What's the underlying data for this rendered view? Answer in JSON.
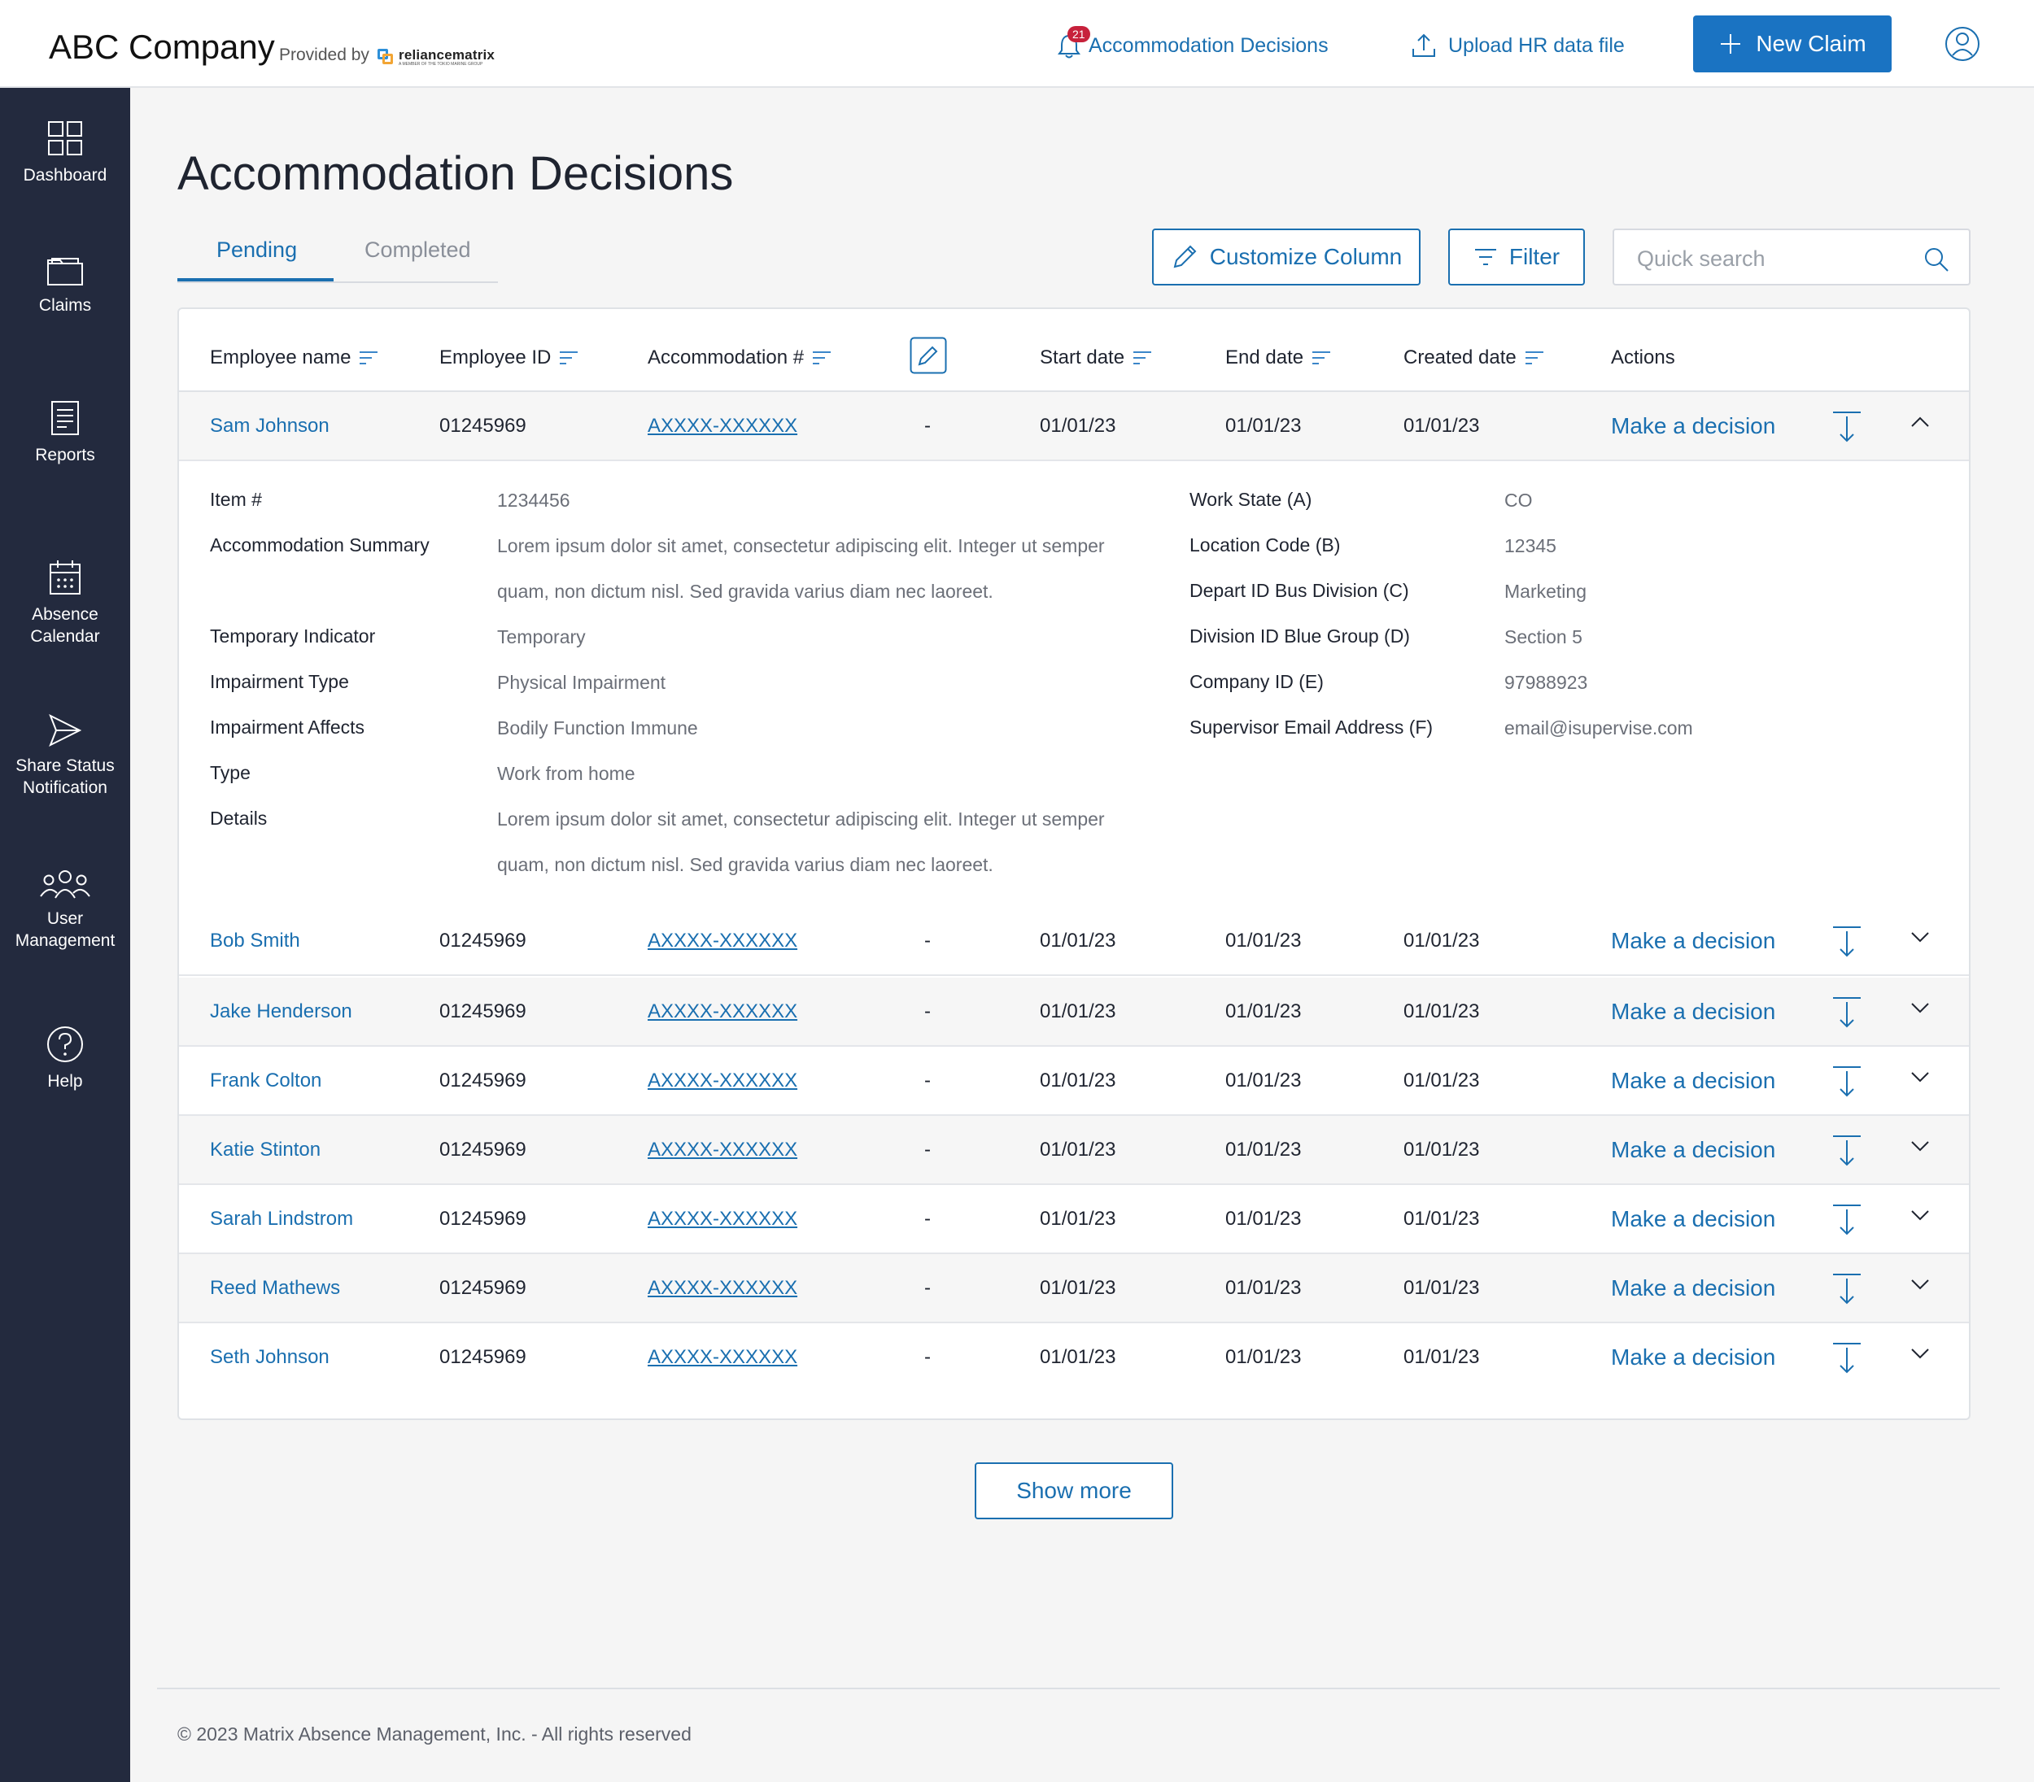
{
  "header": {
    "company": "ABC Company",
    "provided_by": "Provided by",
    "logo_text": "reliancematrix",
    "logo_subtext": "A MEMBER OF THE TOKIO MARINE GROUP",
    "notifications_label": "Accommodation Decisions",
    "notifications_count": "21",
    "upload_label": "Upload HR data file",
    "new_claim_label": "New Claim"
  },
  "sidebar": {
    "items": [
      {
        "label": "Dashboard",
        "icon": "dashboard-icon"
      },
      {
        "label": "Claims",
        "icon": "folder-icon"
      },
      {
        "label": "Reports",
        "icon": "document-icon"
      },
      {
        "label": "Absence Calendar",
        "icon": "calendar-icon"
      },
      {
        "label": "Share Status Notification",
        "icon": "send-icon"
      },
      {
        "label": "User Management",
        "icon": "users-icon"
      },
      {
        "label": "Help",
        "icon": "help-icon"
      }
    ]
  },
  "page": {
    "title": "Accommodation Decisions",
    "tabs": [
      "Pending",
      "Completed"
    ],
    "customize_label": "Customize Column",
    "filter_label": "Filter",
    "search_placeholder": "Quick search"
  },
  "table": {
    "columns": [
      "Employee name",
      "Employee ID",
      "Accommodation #",
      "Start date",
      "End date",
      "Created date",
      "Actions"
    ],
    "action_label": "Make a decision",
    "rows": [
      {
        "name": "Sam Johnson",
        "id": "01245969",
        "acc": "AXXXX-XXXXXX",
        "dash": "-",
        "start": "01/01/23",
        "end": "01/01/23",
        "created": "01/01/23"
      },
      {
        "name": "Bob Smith",
        "id": "01245969",
        "acc": "AXXXX-XXXXXX",
        "dash": "-",
        "start": "01/01/23",
        "end": "01/01/23",
        "created": "01/01/23"
      },
      {
        "name": "Jake Henderson",
        "id": "01245969",
        "acc": "AXXXX-XXXXXX",
        "dash": "-",
        "start": "01/01/23",
        "end": "01/01/23",
        "created": "01/01/23"
      },
      {
        "name": "Frank Colton",
        "id": "01245969",
        "acc": "AXXXX-XXXXXX",
        "dash": "-",
        "start": "01/01/23",
        "end": "01/01/23",
        "created": "01/01/23"
      },
      {
        "name": "Katie Stinton",
        "id": "01245969",
        "acc": "AXXXX-XXXXXX",
        "dash": "-",
        "start": "01/01/23",
        "end": "01/01/23",
        "created": "01/01/23"
      },
      {
        "name": "Sarah Lindstrom",
        "id": "01245969",
        "acc": "AXXXX-XXXXXX",
        "dash": "-",
        "start": "01/01/23",
        "end": "01/01/23",
        "created": "01/01/23"
      },
      {
        "name": "Reed Mathews",
        "id": "01245969",
        "acc": "AXXXX-XXXXXX",
        "dash": "-",
        "start": "01/01/23",
        "end": "01/01/23",
        "created": "01/01/23"
      },
      {
        "name": "Seth Johnson",
        "id": "01245969",
        "acc": "AXXXX-XXXXXX",
        "dash": "-",
        "start": "01/01/23",
        "end": "01/01/23",
        "created": "01/01/23"
      }
    ]
  },
  "detail": {
    "left": [
      {
        "label": "Item #",
        "value": "1234456"
      },
      {
        "label": "Accommodation Summary",
        "value": "Lorem ipsum dolor sit amet, consectetur adipiscing elit. Integer ut semper quam, non dictum nisl. Sed gravida varius diam nec laoreet."
      },
      {
        "label": "Temporary Indicator",
        "value": "Temporary"
      },
      {
        "label": "Impairment Type",
        "value": "Physical Impairment"
      },
      {
        "label": "Impairment Affects",
        "value": "Bodily Function Immune"
      },
      {
        "label": "Type",
        "value": "Work from home"
      },
      {
        "label": "Details",
        "value": "Lorem ipsum dolor sit amet, consectetur adipiscing elit. Integer ut semper quam, non dictum nisl. Sed gravida varius diam nec laoreet."
      }
    ],
    "right": [
      {
        "label": "Work State (A)",
        "value": "CO"
      },
      {
        "label": "Location Code (B)",
        "value": "12345"
      },
      {
        "label": "Depart ID Bus Division (C)",
        "value": "Marketing"
      },
      {
        "label": "Division ID Blue Group (D)",
        "value": "Section 5"
      },
      {
        "label": "Company ID (E)",
        "value": "97988923"
      },
      {
        "label": "Supervisor Email Address (F)",
        "value": "email@isupervise.com"
      }
    ]
  },
  "show_more_label": "Show more",
  "footer": "© 2023 Matrix Absence Management, Inc. - All rights reserved",
  "colors": {
    "primary": "#1a73c2",
    "link": "#1a6fb0",
    "sidebar": "#232a3e",
    "badge": "#c7213b"
  }
}
